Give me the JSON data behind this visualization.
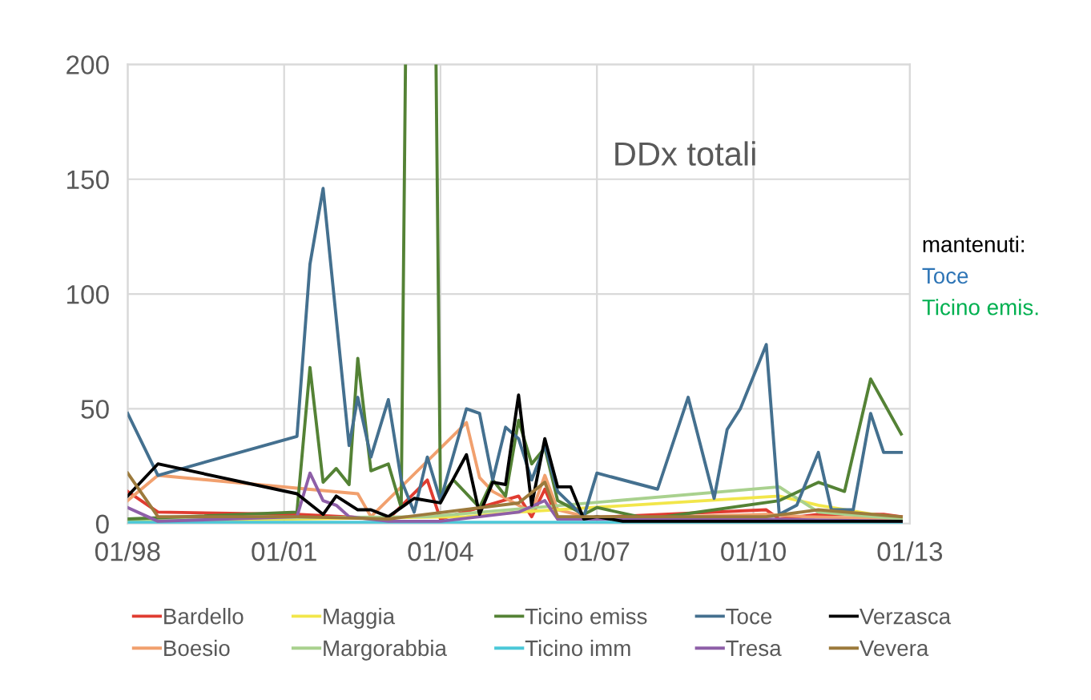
{
  "chart_data": {
    "type": "line",
    "annotations": [
      "DDx totali",
      "mantenuti:",
      "Toce",
      "Ticino emis."
    ],
    "xlim": [
      "1998-01",
      "2013-01"
    ],
    "xticks": [
      {
        "value": "1998-01",
        "label": "01/98"
      },
      {
        "value": "2001-01",
        "label": "01/01"
      },
      {
        "value": "2004-01",
        "label": "01/04"
      },
      {
        "value": "2007-01",
        "label": "01/07"
      },
      {
        "value": "2010-01",
        "label": "01/10"
      },
      {
        "value": "2013-01",
        "label": "01/13"
      }
    ],
    "ylim": [
      0,
      200
    ],
    "yticks": [
      0,
      50,
      100,
      150,
      200
    ],
    "grid": true,
    "legend": "bottom",
    "marker": "none",
    "line_style": "solid",
    "series": [
      {
        "name": "Bardello",
        "color": "#e03c31",
        "x": [
          "1998-01",
          "1998-08",
          "2001-04",
          "2003-01",
          "2003-10",
          "2004-01",
          "2005-07",
          "2005-10",
          "2006-01",
          "2006-04",
          "2010-04",
          "2010-07",
          "2011-04",
          "2012-07",
          "2012-11"
        ],
        "values": [
          14,
          5,
          4,
          2,
          19,
          2,
          12,
          3,
          15,
          2,
          6,
          2,
          4,
          4,
          3
        ]
      },
      {
        "name": "Boesio",
        "color": "#f1a06e",
        "x": [
          "1998-01",
          "1998-08",
          "2002-06",
          "2002-09",
          "2004-07",
          "2004-10",
          "2005-01",
          "2005-07",
          "2005-10",
          "2006-01",
          "2006-04",
          "2007-01",
          "2010-04",
          "2011-01",
          "2012-11"
        ],
        "values": [
          10,
          21,
          13,
          3,
          44,
          20,
          14,
          8,
          5,
          21,
          6,
          2,
          4,
          3,
          2
        ]
      },
      {
        "name": "Maggia",
        "color": "#f2e64a",
        "x": [
          "1998-01",
          "2004-07",
          "2005-07",
          "2010-07",
          "2011-04",
          "2012-11"
        ],
        "values": [
          1,
          3,
          5,
          12,
          8,
          2
        ]
      },
      {
        "name": "Margorabbia",
        "color": "#a9d18e",
        "x": [
          "1998-01",
          "2003-10",
          "2010-07",
          "2011-04",
          "2012-11"
        ],
        "values": [
          2,
          3,
          16,
          5,
          2
        ]
      },
      {
        "name": "Ticino emiss",
        "color": "#548235",
        "x": [
          "1998-01",
          "2001-04",
          "2001-07",
          "2001-10",
          "2002-01",
          "2002-04",
          "2002-06",
          "2002-09",
          "2003-01",
          "2003-04",
          "2003-05",
          "2003-08",
          "2003-12",
          "2004-01",
          "2004-04",
          "2004-10",
          "2005-01",
          "2005-04",
          "2005-07",
          "2005-10",
          "2006-01",
          "2006-04",
          "2006-10",
          "2007-01",
          "2008-01",
          "2010-07",
          "2011-04",
          "2011-10",
          "2012-04",
          "2012-11"
        ],
        "values": [
          2,
          5,
          68,
          18,
          24,
          17,
          72,
          23,
          26,
          7,
          200,
          null,
          200,
          12,
          19,
          7,
          19,
          12,
          45,
          26,
          33,
          10,
          4,
          7,
          2,
          10,
          18,
          14,
          63,
          39
        ]
      },
      {
        "name": "Ticino imm",
        "color": "#4bc8d8",
        "x": [
          "1998-01",
          "2012-11"
        ],
        "values": [
          0.5,
          0.5
        ]
      },
      {
        "name": "Toce",
        "color": "#44708f",
        "x": [
          "1998-01",
          "1998-08",
          "2001-04",
          "2001-07",
          "2001-10",
          "2002-04",
          "2002-06",
          "2002-09",
          "2003-01",
          "2003-04",
          "2003-07",
          "2003-10",
          "2004-01",
          "2004-07",
          "2004-10",
          "2005-01",
          "2005-04",
          "2005-07",
          "2005-10",
          "2006-01",
          "2006-04",
          "2006-10",
          "2007-01",
          "2008-03",
          "2008-10",
          "2009-04",
          "2009-07",
          "2009-10",
          "2010-04",
          "2010-07",
          "2010-11",
          "2011-04",
          "2011-07",
          "2011-12",
          "2012-04",
          "2012-07",
          "2012-11"
        ],
        "values": [
          48,
          21,
          38,
          113,
          146,
          34,
          55,
          29,
          54,
          19,
          5,
          29,
          10,
          50,
          48,
          19,
          42,
          37,
          19,
          34,
          14,
          3,
          22,
          15,
          55,
          11,
          41,
          50,
          78,
          4,
          8,
          31,
          6,
          6,
          48,
          31,
          31
        ]
      },
      {
        "name": "Tresa",
        "color": "#8e5fa8",
        "x": [
          "1998-01",
          "1998-08",
          "2001-04",
          "2001-07",
          "2001-10",
          "2002-01",
          "2002-04",
          "2003-01",
          "2004-01",
          "2005-07",
          "2006-01",
          "2006-04",
          "2010-01",
          "2012-11"
        ],
        "values": [
          7,
          1,
          3,
          22,
          10,
          8,
          3,
          1,
          1,
          5,
          10,
          2,
          2,
          1
        ]
      },
      {
        "name": "Verzasca",
        "color": "#000000",
        "x": [
          "1998-01",
          "1998-08",
          "2001-04",
          "2001-10",
          "2002-01",
          "2002-06",
          "2002-09",
          "2003-01",
          "2003-07",
          "2004-01",
          "2004-07",
          "2004-10",
          "2005-01",
          "2005-04",
          "2005-07",
          "2005-10",
          "2006-01",
          "2006-04",
          "2006-07",
          "2006-10",
          "2007-01",
          "2007-07",
          "2012-11"
        ],
        "values": [
          12,
          26,
          13,
          4,
          12,
          6,
          6,
          3,
          11,
          9,
          30,
          4,
          18,
          17,
          56,
          8,
          37,
          16,
          16,
          2,
          3,
          1,
          1
        ]
      },
      {
        "name": "Vevera",
        "color": "#9c7a3c",
        "x": [
          "1998-01",
          "1998-08",
          "2001-04",
          "2003-01",
          "2005-07",
          "2006-01",
          "2006-04",
          "2010-04",
          "2011-04",
          "2012-11"
        ],
        "values": [
          22,
          3,
          3,
          2,
          9,
          18,
          3,
          3,
          6,
          3
        ]
      }
    ]
  }
}
